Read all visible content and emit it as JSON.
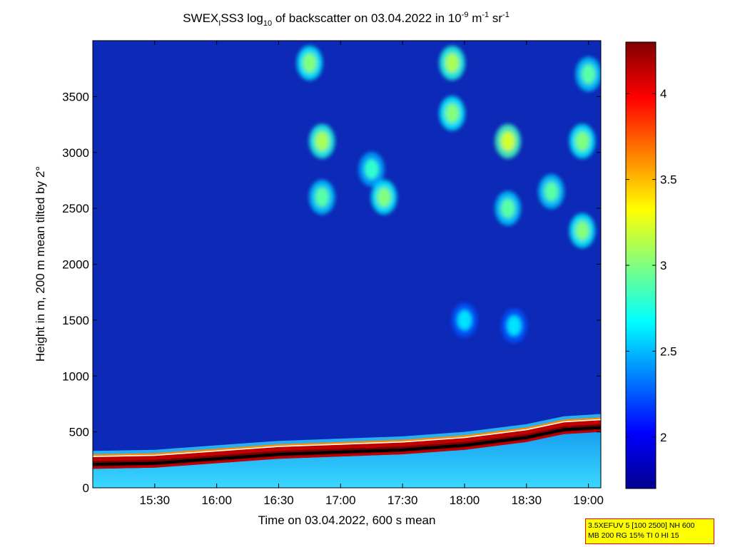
{
  "chart_data": {
    "type": "heatmap",
    "title": {
      "prefix": "SWEX",
      "prefix_sub": "I",
      "mid": "SS3 log",
      "log_sub": "10",
      "after_log": " of backscatter on 03.04.2022 in 10",
      "exp1": "-9",
      "unit_m": " m",
      "exp2": "-1",
      "unit_sr": " sr",
      "exp3": "-1"
    },
    "xlabel": "Time on 03.04.2022, 600 s mean",
    "ylabel": "Height in m, 200 m mean tilted by 2°",
    "x_range_hours": [
      15.0,
      19.1
    ],
    "x_ticks": [
      {
        "label": "15:30",
        "hour": 15.5
      },
      {
        "label": "16:00",
        "hour": 16.0
      },
      {
        "label": "16:30",
        "hour": 16.5
      },
      {
        "label": "17:00",
        "hour": 17.0
      },
      {
        "label": "17:30",
        "hour": 17.5
      },
      {
        "label": "18:00",
        "hour": 18.0
      },
      {
        "label": "18:30",
        "hour": 18.5
      },
      {
        "label": "19:00",
        "hour": 19.0
      }
    ],
    "y_range": [
      0,
      4000
    ],
    "y_ticks": [
      0,
      500,
      1000,
      1500,
      2000,
      2500,
      3000,
      3500
    ],
    "colorbar": {
      "range": [
        1.7,
        4.3
      ],
      "ticks": [
        "2",
        "2.5",
        "3",
        "3.5",
        "4"
      ],
      "tick_values": [
        2,
        2.5,
        3,
        3.5,
        4
      ],
      "colormap": "jet"
    },
    "boundary_layer_top": [
      {
        "hour": 15.0,
        "height": 210
      },
      {
        "hour": 15.5,
        "height": 220
      },
      {
        "hour": 16.0,
        "height": 260
      },
      {
        "hour": 16.5,
        "height": 300
      },
      {
        "hour": 17.0,
        "height": 320
      },
      {
        "hour": 17.5,
        "height": 340
      },
      {
        "hour": 18.0,
        "height": 380
      },
      {
        "hour": 18.5,
        "height": 450
      },
      {
        "hour": 18.8,
        "height": 520
      },
      {
        "hour": 19.1,
        "height": 540
      }
    ],
    "clouds": [
      {
        "hour": 16.75,
        "height": 3800,
        "level": 3.0
      },
      {
        "hour": 16.85,
        "height": 3100,
        "level": 3.1
      },
      {
        "hour": 16.85,
        "height": 2600,
        "level": 2.9
      },
      {
        "hour": 17.35,
        "height": 2600,
        "level": 3.0
      },
      {
        "hour": 17.25,
        "height": 2850,
        "level": 2.8
      },
      {
        "hour": 17.9,
        "height": 3800,
        "level": 3.1
      },
      {
        "hour": 17.9,
        "height": 3350,
        "level": 3.0
      },
      {
        "hour": 18.35,
        "height": 3100,
        "level": 3.2
      },
      {
        "hour": 18.35,
        "height": 2500,
        "level": 2.9
      },
      {
        "hour": 18.7,
        "height": 2650,
        "level": 2.9
      },
      {
        "hour": 18.95,
        "height": 3100,
        "level": 3.0
      },
      {
        "hour": 18.95,
        "height": 2300,
        "level": 3.0
      },
      {
        "hour": 19.0,
        "height": 3700,
        "level": 2.9
      },
      {
        "hour": 18.4,
        "height": 1450,
        "level": 2.6
      },
      {
        "hour": 18.0,
        "height": 1500,
        "level": 2.6
      }
    ]
  },
  "info_box": {
    "line1": "3.5XEFUV 5 [100 2500] NH 600",
    "line2": "MB 200 RG 15% TI 0 HI 15"
  }
}
